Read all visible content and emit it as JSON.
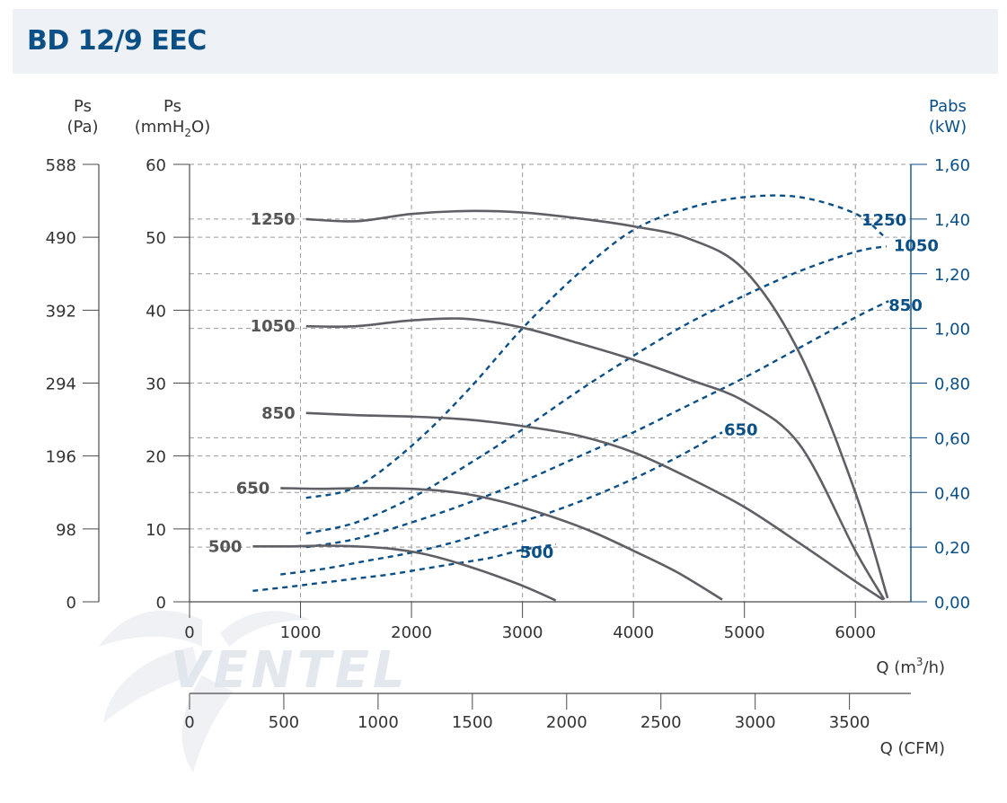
{
  "title": "BD 12/9 EEC",
  "watermark": "VENTEL",
  "colors": {
    "pressure_curve": "#5f5f66",
    "power_curve": "#0b4f87",
    "grid": "#9a9a9a",
    "title": "#0b4f87",
    "header_bg": "#eef1f5",
    "watermark": "#dde3ea"
  },
  "axes": {
    "pa_label_1": "Ps",
    "pa_label_2": "(Pa)",
    "mm_label_1": "Ps",
    "mm_label_2": "(mmH",
    "mm_label_sub": "2",
    "mm_label_3": "O)",
    "kw_label_1": "Pabs",
    "kw_label_2": "(kW)",
    "q_label_1": "Q (m",
    "q_label_sup": "3",
    "q_label_2": "/h)",
    "cfm_label": "Q (CFM)"
  },
  "chart_data": {
    "type": "line",
    "title": "BD 12/9 EEC",
    "xlabel": "Q (m3/h)",
    "ylabel": "Ps (mmH2O)",
    "y2label": "Pabs (kW)",
    "xlim": [
      0,
      6500
    ],
    "ylim": [
      0,
      60
    ],
    "y2lim": [
      0,
      1.6
    ],
    "grid": true,
    "x_ticks": [
      "0",
      "1000",
      "2000",
      "3000",
      "4000",
      "5000",
      "6000"
    ],
    "x_tick_values": [
      0,
      1000,
      2000,
      3000,
      4000,
      5000,
      6000
    ],
    "cfm_ticks": [
      "0",
      "500",
      "1000",
      "1500",
      "2000",
      "2500",
      "3000",
      "3500"
    ],
    "cfm_tick_values": [
      0,
      500,
      1000,
      1500,
      2000,
      2500,
      3000,
      3500
    ],
    "y_ticks_mm": [
      "0",
      "10",
      "20",
      "30",
      "40",
      "50",
      "60"
    ],
    "y_ticks_mm_values": [
      0,
      10,
      20,
      30,
      40,
      50,
      60
    ],
    "y_ticks_pa": [
      "0",
      "98",
      "196",
      "294",
      "392",
      "490",
      "588"
    ],
    "y2_ticks": [
      "0,00",
      "0,20",
      "0,40",
      "0,60",
      "0,80",
      "1,00",
      "1,20",
      "1,40",
      "1,60"
    ],
    "y2_tick_values": [
      0,
      0.2,
      0.4,
      0.6,
      0.8,
      1.0,
      1.2,
      1.4,
      1.6
    ],
    "extra_grid_y": [
      7.5,
      15,
      22.5,
      37.5,
      45,
      52.5
    ],
    "pressure_series": [
      {
        "name": "1250",
        "x": [
          1050,
          1500,
          2000,
          2500,
          3000,
          3500,
          4000,
          4500,
          5000,
          5500,
          6000,
          6290
        ],
        "y": [
          52.5,
          52.2,
          53.2,
          53.6,
          53.4,
          52.6,
          51.5,
          49.8,
          45.5,
          34,
          15,
          0.5
        ]
      },
      {
        "name": "1050",
        "x": [
          1050,
          1500,
          2000,
          2500,
          3000,
          3500,
          4000,
          4500,
          5000,
          5500,
          6000,
          6260
        ],
        "y": [
          37.8,
          37.8,
          38.6,
          38.8,
          37.6,
          35.5,
          33.2,
          30.5,
          27.5,
          21.5,
          7,
          0.3
        ]
      },
      {
        "name": "850",
        "x": [
          1050,
          1500,
          2000,
          2500,
          3000,
          3500,
          4000,
          4500,
          5000,
          5500,
          6000,
          6250
        ],
        "y": [
          25.9,
          25.6,
          25.4,
          25,
          24.1,
          22.8,
          20.5,
          17,
          13,
          8,
          2.8,
          0.3
        ]
      },
      {
        "name": "650",
        "x": [
          820,
          1200,
          1600,
          2000,
          2400,
          2800,
          3200,
          3600,
          4000,
          4400,
          4800
        ],
        "y": [
          15.6,
          15.5,
          15.6,
          15.5,
          15,
          13.8,
          12,
          9.8,
          7,
          4,
          0.3
        ]
      },
      {
        "name": "500",
        "x": [
          570,
          900,
          1200,
          1500,
          1800,
          2100,
          2400,
          2700,
          3000,
          3300
        ],
        "y": [
          7.6,
          7.6,
          7.7,
          7.6,
          7.3,
          6.6,
          5.4,
          3.9,
          2.2,
          0.2
        ]
      }
    ],
    "power_series": [
      {
        "name": "1250",
        "x": [
          1050,
          1500,
          2000,
          2500,
          3000,
          3500,
          4000,
          4500,
          5000,
          5500,
          6000,
          6250
        ],
        "y": [
          0.38,
          0.42,
          0.57,
          0.77,
          1.0,
          1.2,
          1.36,
          1.44,
          1.48,
          1.48,
          1.42,
          1.34
        ]
      },
      {
        "name": "1050",
        "x": [
          1050,
          1500,
          2000,
          2500,
          3000,
          3500,
          4000,
          4500,
          5000,
          5500,
          6000,
          6280
        ],
        "y": [
          0.25,
          0.29,
          0.38,
          0.5,
          0.63,
          0.77,
          0.9,
          1.02,
          1.12,
          1.21,
          1.28,
          1.3
        ]
      },
      {
        "name": "850",
        "x": [
          1050,
          1500,
          2000,
          2500,
          3000,
          3500,
          4000,
          4500,
          5000,
          5500,
          6000,
          6300
        ],
        "y": [
          0.2,
          0.23,
          0.29,
          0.36,
          0.44,
          0.53,
          0.62,
          0.72,
          0.82,
          0.93,
          1.04,
          1.1
        ]
      },
      {
        "name": "650",
        "x": [
          820,
          1200,
          1600,
          2000,
          2400,
          2800,
          3200,
          3600,
          4000,
          4400,
          4800
        ],
        "y": [
          0.1,
          0.12,
          0.15,
          0.18,
          0.22,
          0.27,
          0.32,
          0.38,
          0.45,
          0.53,
          0.62
        ]
      },
      {
        "name": "500",
        "x": [
          570,
          900,
          1200,
          1500,
          1800,
          2100,
          2400,
          2700,
          3000,
          3300
        ],
        "y": [
          0.04,
          0.055,
          0.07,
          0.085,
          0.1,
          0.12,
          0.14,
          0.16,
          0.19,
          0.21
        ]
      }
    ]
  }
}
